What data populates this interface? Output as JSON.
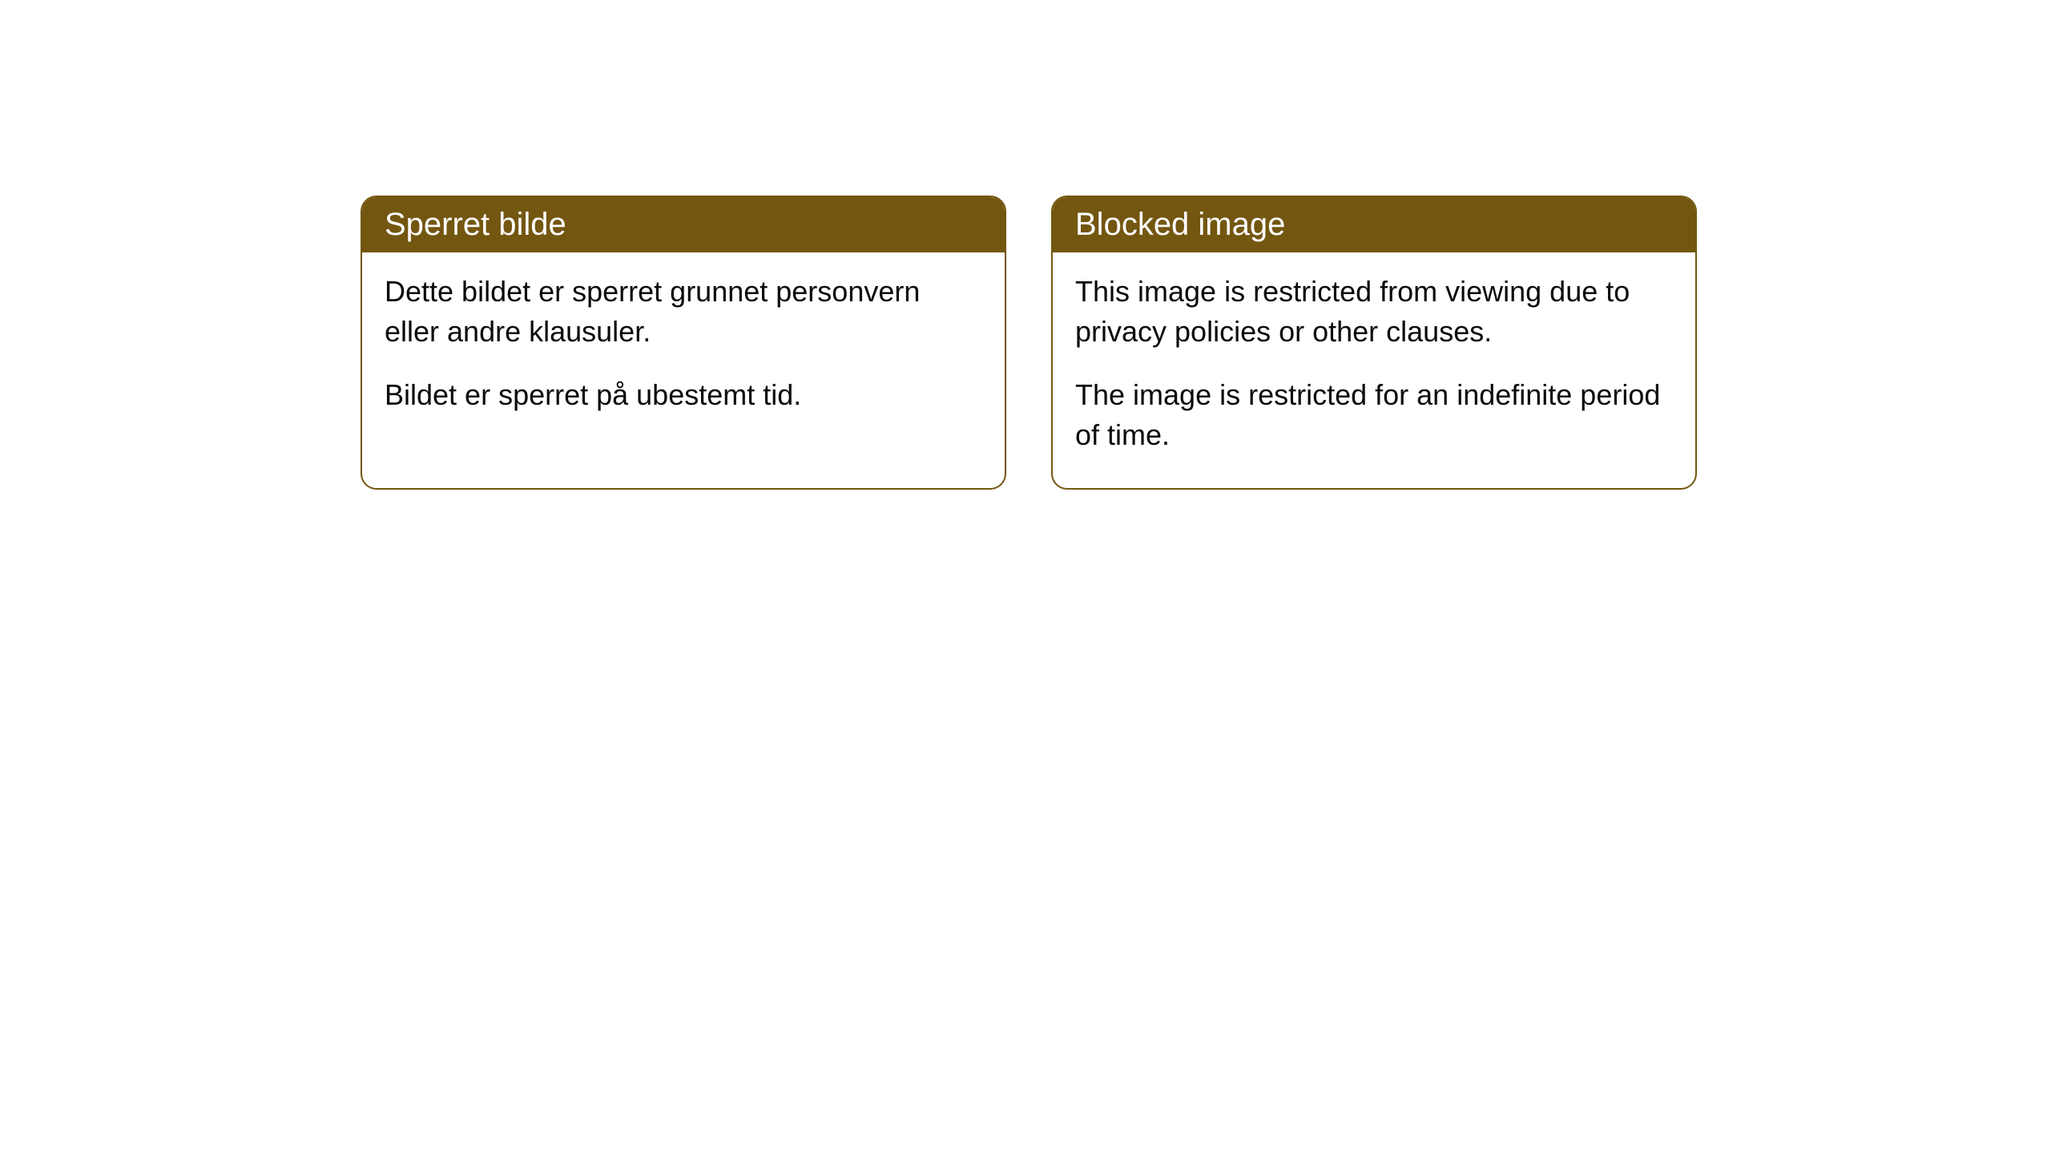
{
  "cards": [
    {
      "title": "Sperret bilde",
      "paragraph1": "Dette bildet er sperret grunnet personvern eller andre klausuler.",
      "paragraph2": "Bildet er sperret på ubestemt tid."
    },
    {
      "title": "Blocked image",
      "paragraph1": "This image is restricted from viewing due to privacy policies or other clauses.",
      "paragraph2": "The image is restricted for an indefinite period of time."
    }
  ],
  "styling": {
    "header_background": "#735610",
    "header_text_color": "#ffffff",
    "border_color": "#735610",
    "body_background": "#ffffff",
    "body_text_color": "#0a0a0a",
    "border_radius": "20px",
    "header_fontsize": 40,
    "body_fontsize": 36
  }
}
